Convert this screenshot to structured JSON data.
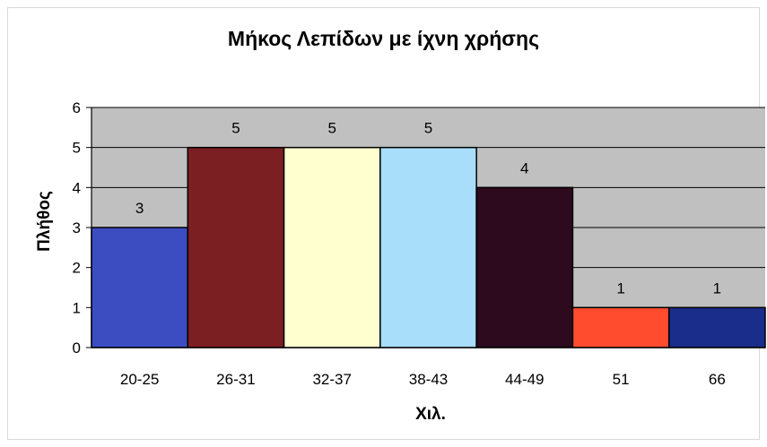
{
  "chart_data": {
    "type": "bar",
    "title": "Μήκος Λεπίδων με ίχνη χρήσης",
    "xlabel": "Χιλ.",
    "ylabel": "Πλήθος",
    "categories": [
      "20-25",
      "26-31",
      "32-37",
      "38-43",
      "44-49",
      "51",
      "66"
    ],
    "values": [
      3,
      5,
      5,
      5,
      4,
      1,
      1
    ],
    "colors": [
      "#3c4dc2",
      "#7c1f22",
      "#ffffd0",
      "#a8defa",
      "#2d0a1e",
      "#ff4c2e",
      "#1a2d8a"
    ],
    "ylim": [
      0,
      6
    ],
    "yticks": [
      "0",
      "1",
      "2",
      "3",
      "4",
      "5",
      "6"
    ],
    "grid": true,
    "plot_background": "#c0c0c0",
    "data_labels": [
      "3",
      "5",
      "5",
      "5",
      "4",
      "1",
      "1"
    ]
  }
}
